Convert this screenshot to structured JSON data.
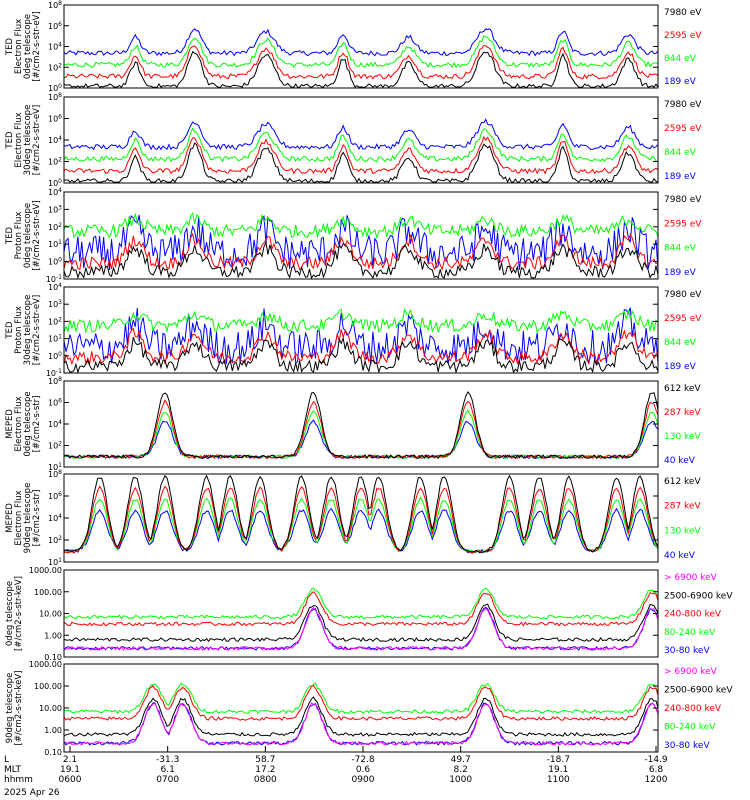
{
  "colors": {
    "black": "#000000",
    "red": "#ff0000",
    "green": "#00ff00",
    "blue": "#0000ff",
    "magenta": "#ff00ff"
  },
  "x_axis": {
    "ticks": [
      {
        "l": "2.1",
        "m": "19.1",
        "h": "0600"
      },
      {
        "l": "-31.3",
        "m": "6.1",
        "h": "0700"
      },
      {
        "l": "58.7",
        "m": "17.2",
        "h": "0800"
      },
      {
        "l": "-72.8",
        "m": "0.6",
        "h": "0900"
      },
      {
        "l": "49.7",
        "m": "8.2",
        "h": "1000"
      },
      {
        "l": "-18.7",
        "m": "19.1",
        "h": "1100"
      },
      {
        "l": "-14.9",
        "m": "6.8",
        "h": "1200"
      }
    ],
    "row_labels": [
      "L",
      "MLT",
      "hhmm"
    ],
    "date": "2025 Apr 26"
  },
  "chart_data": [
    {
      "type": "line",
      "ylabel": [
        "TED",
        "Electron Flux",
        "0deg telescope",
        "[#/cm2-s-str-eV]"
      ],
      "y_tick_labels": [
        "10^0",
        "10^2",
        "10^4",
        "10^6",
        "10^8"
      ],
      "log_scale": true,
      "legend": [
        {
          "text": "7980 eV",
          "color": "black"
        },
        {
          "text": "2595 eV",
          "color": "red"
        },
        {
          "text": "844 eV",
          "color": "green"
        },
        {
          "text": "189 eV",
          "color": "blue"
        }
      ]
    },
    {
      "type": "line",
      "ylabel": [
        "TED",
        "Electron Flux",
        "30deg telescope",
        "[#/cm2-s-str-eV]"
      ],
      "y_tick_labels": [
        "10^0",
        "10^2",
        "10^4",
        "10^6",
        "10^8"
      ],
      "log_scale": true,
      "legend": [
        {
          "text": "7980 eV",
          "color": "black"
        },
        {
          "text": "2595 eV",
          "color": "red"
        },
        {
          "text": "844 eV",
          "color": "green"
        },
        {
          "text": "189 eV",
          "color": "blue"
        }
      ]
    },
    {
      "type": "line",
      "ylabel": [
        "TED",
        "Proton Flux",
        "0deg telescope",
        "[#/cm2-s-str-eV]"
      ],
      "y_tick_labels": [
        "10^-1",
        "10^0",
        "10^1",
        "10^2",
        "10^3",
        "10^4"
      ],
      "log_scale": true,
      "legend": [
        {
          "text": "7980 eV",
          "color": "black"
        },
        {
          "text": "2595 eV",
          "color": "red"
        },
        {
          "text": "844 eV",
          "color": "green"
        },
        {
          "text": "189 eV",
          "color": "blue"
        }
      ]
    },
    {
      "type": "line",
      "ylabel": [
        "TED",
        "Proton Flux",
        "30deg telescope",
        "[#/cm2-s-str-eV]"
      ],
      "y_tick_labels": [
        "10^-1",
        "10^0",
        "10^1",
        "10^2",
        "10^3",
        "10^4"
      ],
      "log_scale": true,
      "legend": [
        {
          "text": "7980 eV",
          "color": "black"
        },
        {
          "text": "2595 eV",
          "color": "red"
        },
        {
          "text": "844 eV",
          "color": "green"
        },
        {
          "text": "189 eV",
          "color": "blue"
        }
      ]
    },
    {
      "type": "line",
      "ylabel": [
        "MEPED",
        "Electron Flux",
        "0deg telescope",
        "[#/cm2-s-str]"
      ],
      "y_tick_labels": [
        "10^1",
        "10^2",
        "10^4",
        "10^6",
        "10^8"
      ],
      "log_scale": true,
      "legend": [
        {
          "text": "612 keV",
          "color": "black"
        },
        {
          "text": "287 keV",
          "color": "red"
        },
        {
          "text": "130 keV",
          "color": "green"
        },
        {
          "text": "40 keV",
          "color": "blue"
        }
      ]
    },
    {
      "type": "line",
      "ylabel": [
        "MEPED",
        "Electron Flux",
        "90deg telescope",
        "[#/cm2-s-str]"
      ],
      "y_tick_labels": [
        "10^1",
        "10^2",
        "10^4",
        "10^6",
        "10^8"
      ],
      "log_scale": true,
      "legend": [
        {
          "text": "612 keV",
          "color": "black"
        },
        {
          "text": "287 keV",
          "color": "red"
        },
        {
          "text": "130 keV",
          "color": "green"
        },
        {
          "text": "40 keV",
          "color": "blue"
        }
      ]
    },
    {
      "type": "line",
      "ylabel": [
        "0deg telescope",
        "[#/cm2-s-str-keV]"
      ],
      "y_tick_labels": [
        "0.10",
        "1.00",
        "10.00",
        "100.00",
        "1000.00"
      ],
      "log_scale": true,
      "legend": [
        {
          "text": "> 6900 keV",
          "color": "magenta"
        },
        {
          "text": "2500-6900 keV",
          "color": "black"
        },
        {
          "text": "240-800 keV",
          "color": "red"
        },
        {
          "text": "80-240 keV",
          "color": "green"
        },
        {
          "text": "30-80 keV",
          "color": "blue"
        }
      ]
    },
    {
      "type": "line",
      "ylabel": [
        "90deg telescope",
        "[#/cm2-s-str-keV]"
      ],
      "y_tick_labels": [
        "0.10",
        "1.00",
        "10.00",
        "100.00",
        "1000.00"
      ],
      "log_scale": true,
      "legend": [
        {
          "text": "> 6900 keV",
          "color": "magenta"
        },
        {
          "text": "2500-6900 keV",
          "color": "black"
        },
        {
          "text": "240-800 keV",
          "color": "red"
        },
        {
          "text": "80-240 keV",
          "color": "green"
        },
        {
          "text": "30-80 keV",
          "color": "blue"
        }
      ]
    }
  ]
}
